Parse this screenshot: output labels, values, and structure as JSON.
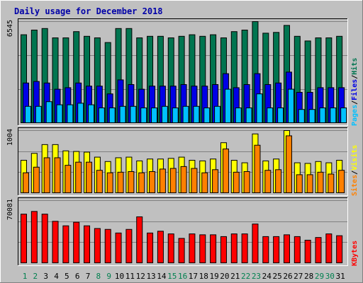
{
  "chart_data": {
    "type": "bar",
    "title": "Daily usage for December 2018",
    "colors": {
      "background": "#c0c0c0",
      "hits": "#007550",
      "files": "#0000e6",
      "pages": "#00c0ff",
      "visits": "#ffff00",
      "sites": "#ff8000",
      "kbytes": "#ff0000",
      "weekend_label": "#00804f",
      "weekday_label": "#000000",
      "title": "#0000a8"
    },
    "categories": [
      "1",
      "2",
      "3",
      "4",
      "5",
      "6",
      "7",
      "8",
      "9",
      "10",
      "11",
      "12",
      "13",
      "14",
      "15",
      "16",
      "17",
      "18",
      "19",
      "20",
      "21",
      "22",
      "23",
      "24",
      "25",
      "26",
      "27",
      "28",
      "29",
      "30",
      "31"
    ],
    "weekend_days": [
      "1",
      "2",
      "8",
      "9",
      "15",
      "16",
      "22",
      "23",
      "29",
      "30"
    ],
    "panels": [
      {
        "id": "hits_files_pages",
        "ymax_label": "6545",
        "ylim": [
          0,
          6545
        ],
        "legend": [
          {
            "text": "Pages",
            "color": "#00c0ff"
          },
          {
            "text": "/",
            "color": "#000000"
          },
          {
            "text": "Files",
            "color": "#0000e6"
          },
          {
            "text": "/",
            "color": "#000000"
          },
          {
            "text": "Hits",
            "color": "#007550"
          }
        ],
        "series": [
          {
            "name": "Hits",
            "color": "#007550",
            "values": [
              5700,
              6000,
              6100,
              5500,
              5500,
              5900,
              5600,
              5500,
              5200,
              6100,
              6100,
              5500,
              5600,
              5600,
              5500,
              5600,
              5700,
              5600,
              5700,
              5500,
              5900,
              6000,
              6545,
              5800,
              5850,
              6300,
              5600,
              5300,
              5500,
              5500,
              5600
            ]
          },
          {
            "name": "Files",
            "color": "#0000e6",
            "values": [
              2600,
              2700,
              2600,
              2200,
              2300,
              2600,
              2400,
              2400,
              1900,
              2800,
              2500,
              2200,
              2400,
              2400,
              2400,
              2500,
              2400,
              2400,
              2500,
              3200,
              2300,
              2500,
              3200,
              2500,
              2600,
              3300,
              2000,
              2000,
              2300,
              2300,
              2300
            ]
          },
          {
            "name": "Pages",
            "color": "#00c0ff",
            "values": [
              1100,
              1100,
              1400,
              1200,
              1200,
              1300,
              1200,
              1000,
              1000,
              1100,
              1100,
              1000,
              1000,
              1100,
              1000,
              1100,
              1100,
              1000,
              1100,
              2200,
              1000,
              1000,
              1900,
              1000,
              1000,
              2200,
              900,
              900,
              1000,
              1000,
              1000
            ]
          }
        ]
      },
      {
        "id": "visits_sites",
        "ymax_label": "1004",
        "ylim": [
          0,
          1004
        ],
        "legend": [
          {
            "text": "Sites",
            "color": "#ff8000"
          },
          {
            "text": "/",
            "color": "#000000"
          },
          {
            "text": "Visits",
            "color": "#ffff00"
          }
        ],
        "series": [
          {
            "name": "Visits",
            "color": "#ffff00",
            "values": [
              530,
              640,
              780,
              780,
              680,
              670,
              660,
              580,
              510,
              570,
              580,
              520,
              550,
              550,
              560,
              580,
              530,
              520,
              550,
              810,
              530,
              490,
              950,
              520,
              550,
              1004,
              490,
              480,
              510,
              490,
              530
            ]
          },
          {
            "name": "Sites",
            "color": "#ff8000",
            "values": [
              330,
              420,
              570,
              570,
              450,
              500,
              500,
              370,
              330,
              340,
              350,
              330,
              350,
              390,
              400,
              430,
              400,
              330,
              380,
              710,
              340,
              350,
              770,
              370,
              380,
              920,
              300,
              300,
              340,
              310,
              370
            ]
          }
        ]
      },
      {
        "id": "kbytes",
        "ymax_label": "70081",
        "ylim": [
          0,
          70081
        ],
        "legend": [
          {
            "text": "KBytes",
            "color": "#ff0000"
          }
        ],
        "series": [
          {
            "name": "KBytes",
            "color": "#ff0000",
            "values": [
              55000,
              58000,
              55000,
              47000,
              42000,
              46000,
              42000,
              39000,
              38000,
              34000,
              38000,
              52000,
              34000,
              36000,
              33000,
              28000,
              33000,
              32000,
              32000,
              30000,
              33000,
              33000,
              44000,
              30000,
              30000,
              32000,
              30000,
              26000,
              29000,
              33000,
              31000
            ]
          }
        ]
      }
    ]
  }
}
